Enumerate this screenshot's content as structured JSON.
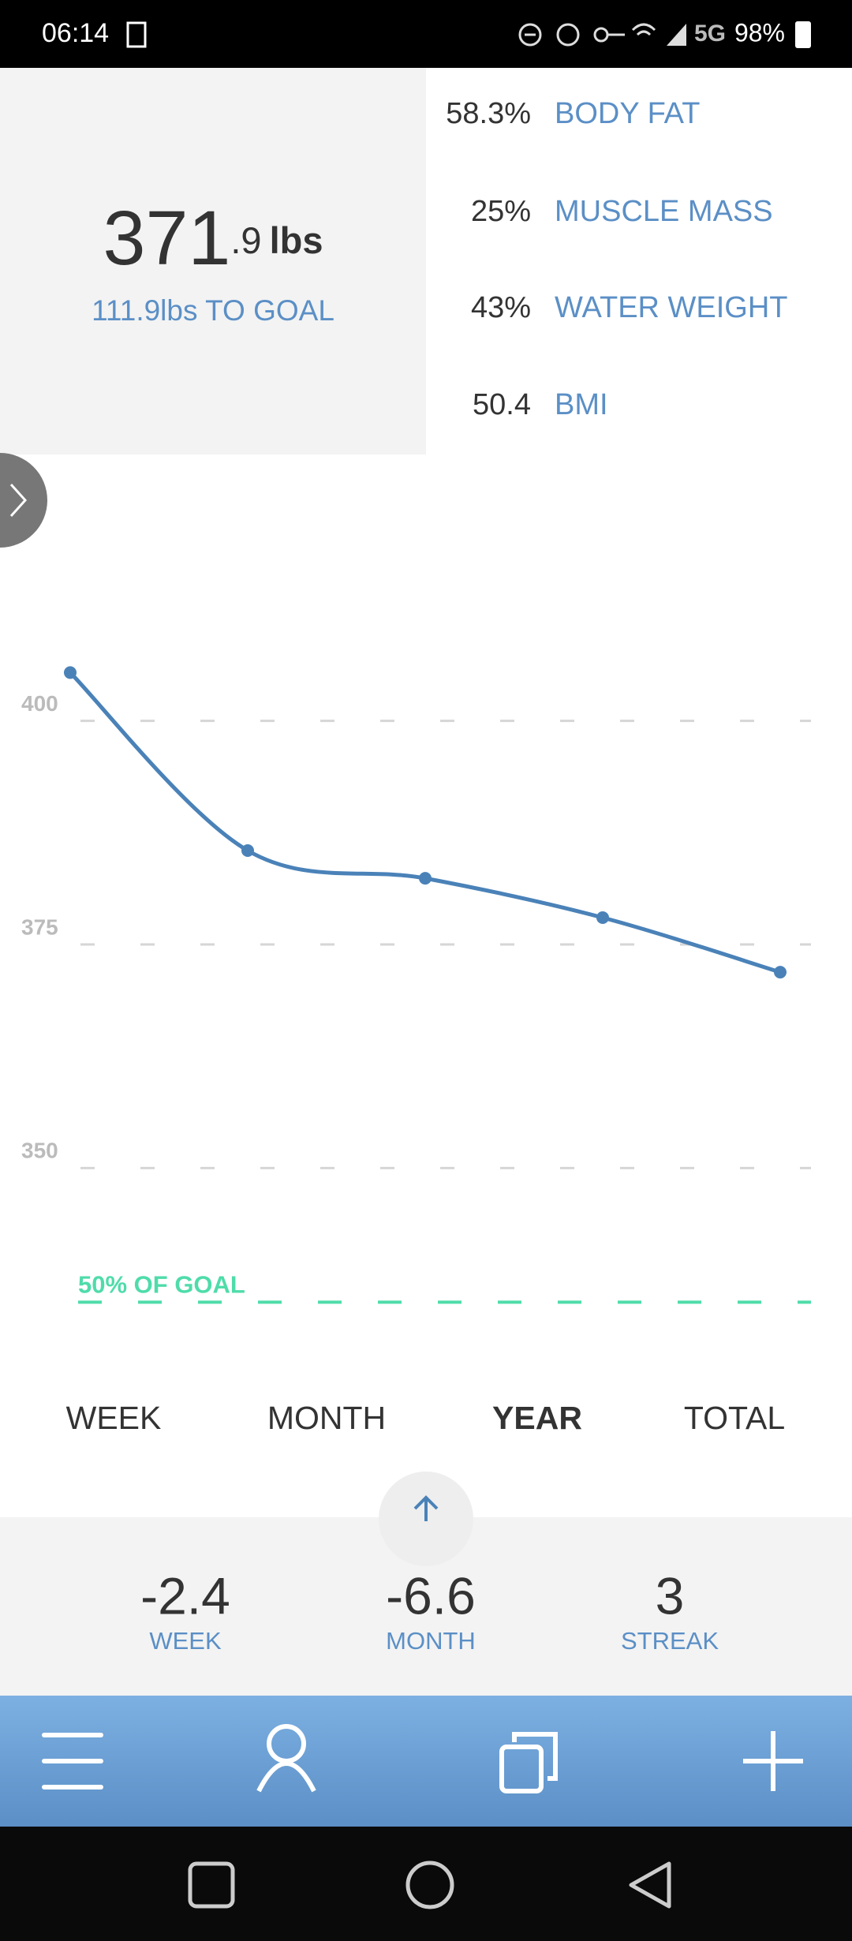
{
  "status_bar": {
    "time": "06:14",
    "network": "5G",
    "battery": "98%"
  },
  "summary": {
    "weight_whole": "371",
    "weight_decimal": ".9",
    "weight_unit": "lbs",
    "to_goal": "111.9lbs TO GOAL"
  },
  "stats": [
    {
      "value": "58.3%",
      "label": "BODY FAT"
    },
    {
      "value": "25%",
      "label": "MUSCLE MASS"
    },
    {
      "value": "43%",
      "label": "WATER WEIGHT"
    },
    {
      "value": "50.4",
      "label": "BMI"
    }
  ],
  "chart_data": {
    "type": "line",
    "categories": [
      null,
      null,
      null,
      null,
      null
    ],
    "series": [
      {
        "color": "#4a82b8",
        "values": [
          405.4,
          385.5,
          382.4,
          378.0,
          371.9
        ]
      }
    ],
    "ylim": [
      330,
      410
    ],
    "yticks": [
      350,
      375,
      400
    ],
    "grid": true,
    "goal_line": {
      "value": 335,
      "label": "50% OF GOAL",
      "color": "#4fdcaa"
    }
  },
  "tabs": [
    "WEEK",
    "MONTH",
    "YEAR",
    "TOTAL"
  ],
  "active_tab": 2,
  "changes": [
    {
      "value": "-2.4",
      "label": "WEEK"
    },
    {
      "value": "-6.6",
      "label": "MONTH"
    },
    {
      "value": "3",
      "label": "STREAK"
    }
  ]
}
